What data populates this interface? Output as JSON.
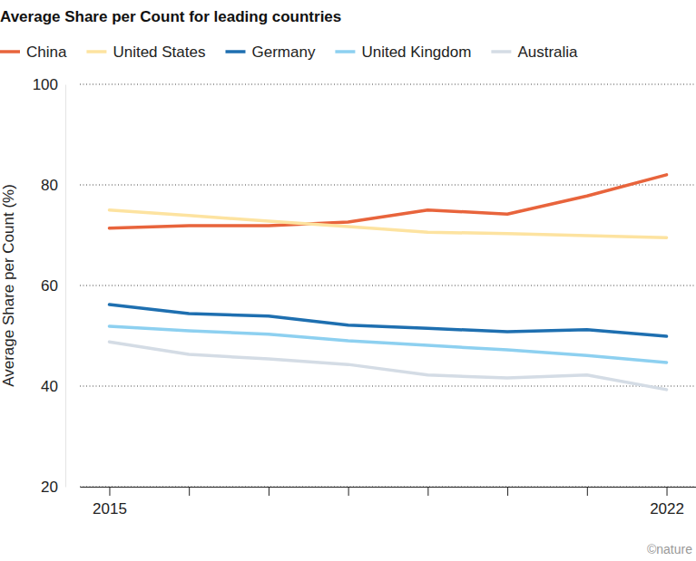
{
  "chart_data": {
    "type": "line",
    "title": "Average Share per Count for leading countries",
    "y_label": "Average Share per Count (%)",
    "annotations": [
      "©nature"
    ],
    "categories": [
      "2015",
      null,
      null,
      null,
      null,
      null,
      null,
      "2022"
    ],
    "series": [
      {
        "name": "China",
        "color": "#e8643c",
        "values": [
          71.4,
          71.9,
          71.9,
          72.6,
          75.0,
          74.2,
          77.8,
          82.0
        ]
      },
      {
        "name": "United States",
        "color": "#fde3a0",
        "values": [
          75.0,
          73.9,
          72.8,
          71.7,
          70.6,
          70.3,
          69.9,
          69.5
        ]
      },
      {
        "name": "Germany",
        "color": "#1e6fb0",
        "values": [
          56.2,
          54.4,
          53.9,
          52.1,
          51.5,
          50.8,
          51.2,
          49.9
        ]
      },
      {
        "name": "United Kingdom",
        "color": "#8dd0f0",
        "values": [
          51.9,
          51.0,
          50.3,
          49.0,
          48.1,
          47.2,
          46.1,
          44.7
        ]
      },
      {
        "name": "Australia",
        "color": "#d4dce5",
        "values": [
          48.8,
          46.3,
          45.4,
          44.3,
          42.2,
          41.6,
          42.2,
          39.3
        ]
      }
    ],
    "ylim": [
      20,
      100
    ],
    "yticks": [
      20,
      40,
      60,
      80,
      100
    ],
    "grid": true,
    "legend": "top"
  }
}
